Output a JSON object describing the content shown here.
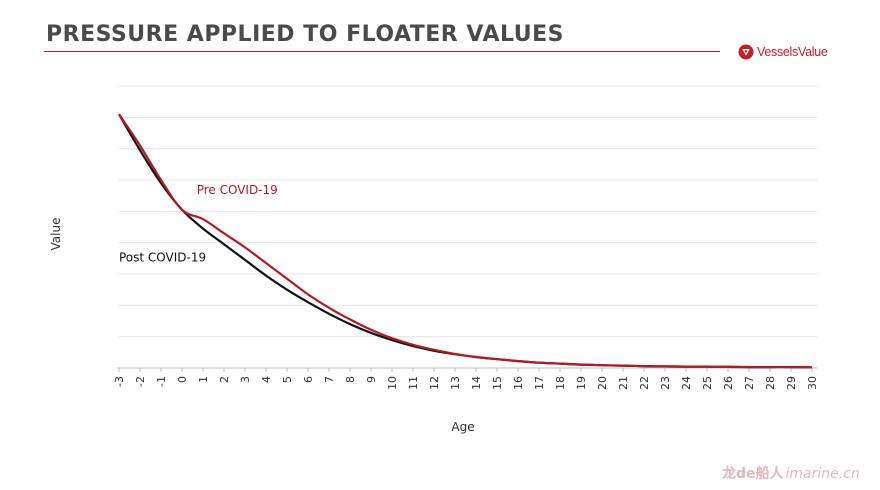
{
  "header": {
    "title": "PRESSURE APPLIED TO FLOATER VALUES",
    "logo_text": "VesselsValue",
    "logo_icon": "vesselsvalue-logo-icon",
    "accent_color": "#c41e2a"
  },
  "watermark": {
    "cn_text": "龙de船人",
    "url_text": "imarine.cn"
  },
  "chart_data": {
    "type": "line",
    "xlabel": "Age",
    "ylabel": "Value",
    "x": [
      -3,
      -2,
      -1,
      0,
      1,
      2,
      3,
      4,
      5,
      6,
      7,
      8,
      9,
      10,
      11,
      12,
      13,
      14,
      15,
      16,
      17,
      18,
      19,
      20,
      21,
      22,
      23,
      24,
      25,
      26,
      27,
      28,
      29,
      30
    ],
    "xlim": [
      -3,
      30
    ],
    "ylim": [
      0,
      9
    ],
    "grid": true,
    "y_tick_labels_shown": false,
    "legend": "inline-labels",
    "series": [
      {
        "name": "Pre COVID-19",
        "color": "#b01c24",
        "label_at": "near-peak-knee",
        "values": [
          8.1,
          7.1,
          6.0,
          5.05,
          4.75,
          4.3,
          3.85,
          3.35,
          2.85,
          2.35,
          1.92,
          1.55,
          1.22,
          0.95,
          0.74,
          0.58,
          0.45,
          0.35,
          0.28,
          0.22,
          0.17,
          0.14,
          0.11,
          0.09,
          0.075,
          0.06,
          0.05,
          0.045,
          0.04,
          0.035,
          0.03,
          0.03,
          0.03,
          0.02
        ]
      },
      {
        "name": "Post COVID-19",
        "color": "#111111",
        "label_at": "below-knee",
        "values": [
          8.1,
          6.95,
          5.9,
          5.05,
          4.45,
          3.95,
          3.45,
          2.95,
          2.5,
          2.1,
          1.73,
          1.4,
          1.12,
          0.89,
          0.7,
          0.55,
          0.44,
          0.35,
          0.28,
          0.22,
          0.17,
          0.14,
          0.11,
          0.09,
          0.075,
          0.06,
          0.05,
          0.045,
          0.04,
          0.035,
          0.03,
          0.03,
          0.03,
          0.02
        ]
      }
    ]
  }
}
